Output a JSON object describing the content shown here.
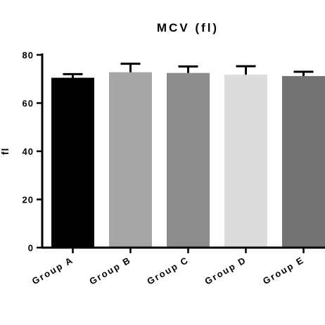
{
  "chart_data": {
    "type": "bar",
    "title": "MCV (fl)",
    "xlabel": "",
    "ylabel": "fl",
    "ylim": [
      0,
      80
    ],
    "yticks": [
      0,
      20,
      40,
      60,
      80
    ],
    "categories": [
      "Group A",
      "Group B",
      "Group C",
      "Group D",
      "Group E"
    ],
    "values": [
      70.5,
      72.8,
      72.5,
      71.8,
      71.2
    ],
    "errors": [
      1.5,
      3.5,
      2.7,
      3.5,
      1.8
    ],
    "colors": [
      "#000000",
      "#a6a6a6",
      "#8c8c8c",
      "#dcdcdc",
      "#737373"
    ],
    "grid": false,
    "legend": "none"
  }
}
